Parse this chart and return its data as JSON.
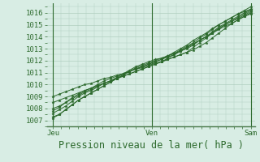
{
  "background_color": "#d8ede4",
  "grid_color": "#b0cfc0",
  "line_color": "#2d6a2d",
  "marker_color": "#2d6a2d",
  "xlabel": "Pression niveau de la mer( hPa )",
  "x_ticks": [
    0,
    48,
    96
  ],
  "x_tick_labels": [
    "Jeu",
    "Ven",
    "Sam"
  ],
  "ylim": [
    1006.5,
    1016.8
  ],
  "xlim": [
    -3,
    98
  ],
  "y_ticks": [
    1007,
    1008,
    1009,
    1010,
    1011,
    1012,
    1013,
    1014,
    1015,
    1016
  ],
  "xlabel_fontsize": 8.5,
  "tick_fontsize": 6.5,
  "series": [
    [
      1007.3,
      1007.5,
      1007.9,
      1008.3,
      1008.7,
      1009.0,
      1009.3,
      1009.6,
      1009.9,
      1010.2,
      1010.5,
      1010.8,
      1011.1,
      1011.3,
      1011.5,
      1011.7,
      1011.9,
      1012.1,
      1012.4,
      1012.7,
      1013.0,
      1013.3,
      1013.7,
      1014.0,
      1014.3,
      1014.7,
      1015.0,
      1015.3,
      1015.6,
      1015.9,
      1016.2,
      1016.5
    ],
    [
      1007.6,
      1007.9,
      1008.2,
      1008.6,
      1009.0,
      1009.3,
      1009.5,
      1009.8,
      1010.1,
      1010.3,
      1010.6,
      1010.9,
      1011.2,
      1011.5,
      1011.7,
      1011.9,
      1012.1,
      1012.2,
      1012.4,
      1012.6,
      1012.9,
      1013.2,
      1013.5,
      1013.9,
      1014.2,
      1014.6,
      1015.0,
      1015.3,
      1015.6,
      1015.9,
      1016.1,
      1016.3
    ],
    [
      1008.0,
      1008.2,
      1008.5,
      1008.8,
      1009.1,
      1009.4,
      1009.6,
      1009.9,
      1010.1,
      1010.3,
      1010.5,
      1010.7,
      1010.9,
      1011.1,
      1011.3,
      1011.5,
      1011.7,
      1011.9,
      1012.1,
      1012.3,
      1012.5,
      1012.7,
      1013.1,
      1013.5,
      1013.9,
      1014.3,
      1014.7,
      1015.0,
      1015.3,
      1015.5,
      1015.8,
      1016.1
    ],
    [
      1007.8,
      1008.1,
      1008.5,
      1008.9,
      1009.2,
      1009.5,
      1009.7,
      1010.0,
      1010.3,
      1010.5,
      1010.7,
      1010.9,
      1011.1,
      1011.3,
      1011.5,
      1011.7,
      1011.9,
      1012.1,
      1012.3,
      1012.5,
      1012.8,
      1013.1,
      1013.4,
      1013.7,
      1014.0,
      1014.3,
      1014.6,
      1014.9,
      1015.1,
      1015.4,
      1015.7,
      1016.0
    ],
    [
      1007.2,
      1007.5,
      1007.9,
      1008.3,
      1008.7,
      1009.0,
      1009.3,
      1009.6,
      1009.9,
      1010.2,
      1010.5,
      1010.8,
      1011.1,
      1011.4,
      1011.6,
      1011.8,
      1012.0,
      1012.2,
      1012.4,
      1012.6,
      1012.8,
      1013.0,
      1013.3,
      1013.7,
      1014.0,
      1014.4,
      1014.8,
      1015.1,
      1015.4,
      1015.7,
      1016.0,
      1016.3
    ],
    [
      1008.5,
      1008.7,
      1008.9,
      1009.1,
      1009.3,
      1009.5,
      1009.7,
      1009.9,
      1010.1,
      1010.3,
      1010.5,
      1010.7,
      1010.9,
      1011.1,
      1011.3,
      1011.5,
      1011.7,
      1011.9,
      1012.2,
      1012.5,
      1012.8,
      1013.1,
      1013.4,
      1013.7,
      1014.0,
      1014.3,
      1014.7,
      1015.0,
      1015.3,
      1015.6,
      1015.9,
      1016.2
    ],
    [
      1009.0,
      1009.2,
      1009.4,
      1009.6,
      1009.8,
      1010.0,
      1010.1,
      1010.3,
      1010.5,
      1010.6,
      1010.8,
      1010.9,
      1011.1,
      1011.3,
      1011.4,
      1011.6,
      1011.8,
      1011.9,
      1012.1,
      1012.3,
      1012.5,
      1012.7,
      1012.9,
      1013.2,
      1013.5,
      1013.9,
      1014.3,
      1014.7,
      1015.1,
      1015.4,
      1015.7,
      1015.9
    ]
  ]
}
